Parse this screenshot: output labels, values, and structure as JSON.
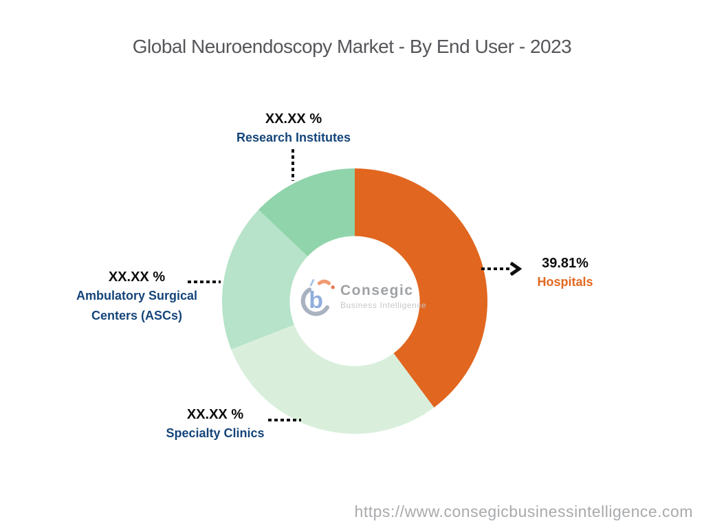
{
  "title": "Global Neuroendoscopy Market - By End User - 2023",
  "logo": {
    "brand": "Consegic",
    "tagline": "Business Intelligence"
  },
  "footer": {
    "url": "https://www.consegicbusinessintelligence.com"
  },
  "chart_data": {
    "type": "pie",
    "subtype": "donut",
    "title": "Global Neuroendoscopy Market - By End User - 2023",
    "direction": "clockwise",
    "start_angle_deg": 0,
    "inner_radius_ratio": 0.49,
    "legend_position": "callouts",
    "segments": [
      {
        "label": "Hospitals",
        "display_value": "39.81%",
        "value_pct": 39.81,
        "color": "#E1661F",
        "label_color": "#E2671E"
      },
      {
        "label": "Specialty Clinics",
        "display_value": "XX.XX %",
        "value_pct": 29.26,
        "color": "#D9EFDC",
        "label_color": "#15457A"
      },
      {
        "label": "Ambulatory Surgical Centers (ASCs)",
        "display_value": "XX.XX %",
        "value_pct": 18.03,
        "color": "#B6E3CA",
        "label_color": "#15457A"
      },
      {
        "label": "Research Institutes",
        "display_value": "XX.XX %",
        "value_pct": 12.9,
        "color": "#90D4AB",
        "label_color": "#15457A"
      }
    ]
  }
}
